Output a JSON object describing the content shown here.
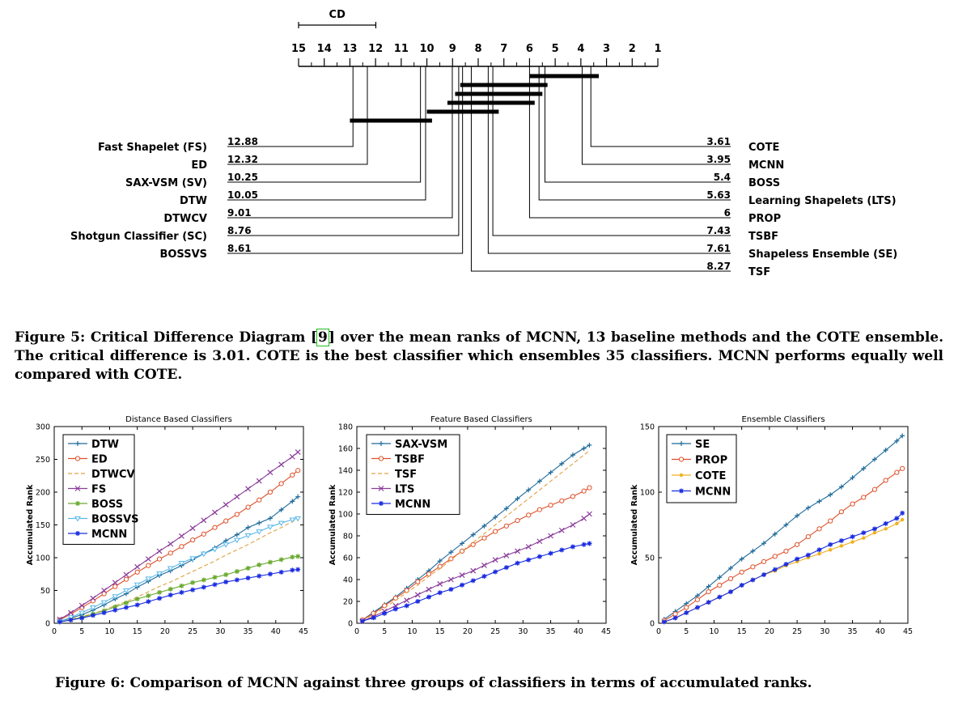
{
  "figure5": {
    "caption_label": "Figure 5:",
    "caption_pre": "Critical Difference Diagram",
    "citation": "9",
    "caption_post": "over the mean ranks of MCNN, 13 baseline methods and the COTE ensemble. The critical difference is 3.01. COTE is the best classifier which ensembles 35 classifiers. MCNN performs equally well compared with COTE.",
    "cd_label": "CD",
    "cd_value": 3.01,
    "axis_ticks": [
      "15",
      "14",
      "13",
      "12",
      "11",
      "10",
      "9",
      "8",
      "7",
      "6",
      "5",
      "4",
      "3",
      "2",
      "1"
    ],
    "left_methods": [
      {
        "name": "Fast Shapelet (FS)",
        "rank_label": "12.88",
        "rank": 12.88
      },
      {
        "name": "ED",
        "rank_label": "12.32",
        "rank": 12.32
      },
      {
        "name": "SAX-VSM (SV)",
        "rank_label": "10.25",
        "rank": 10.25
      },
      {
        "name": "DTW",
        "rank_label": "10.05",
        "rank": 10.05
      },
      {
        "name": "DTWCV",
        "rank_label": "9.01",
        "rank": 9.01
      },
      {
        "name": "Shotgun Classifier (SC)",
        "rank_label": "8.76",
        "rank": 8.76
      },
      {
        "name": "BOSSVS",
        "rank_label": "8.61",
        "rank": 8.61
      }
    ],
    "right_methods": [
      {
        "name": "COTE",
        "rank_label": "3.61",
        "rank": 3.61
      },
      {
        "name": "MCNN",
        "rank_label": "3.95",
        "rank": 3.95
      },
      {
        "name": "BOSS",
        "rank_label": "5.4",
        "rank": 5.4
      },
      {
        "name": "Learning Shapelets (LTS)",
        "rank_label": "5.63",
        "rank": 5.63
      },
      {
        "name": "PROP",
        "rank_label": "6",
        "rank": 6
      },
      {
        "name": "TSBF",
        "rank_label": "7.43",
        "rank": 7.43
      },
      {
        "name": "Shapeless Ensemble (SE)",
        "rank_label": "7.61",
        "rank": 7.61
      },
      {
        "name": "TSF",
        "rank_label": "8.27",
        "rank": 8.27
      }
    ],
    "cliques": [
      [
        6.0,
        3.3
      ],
      [
        8.7,
        5.3
      ],
      [
        8.9,
        5.5
      ],
      [
        9.2,
        5.8
      ],
      [
        10.0,
        7.2
      ],
      [
        13.0,
        9.8
      ]
    ]
  },
  "figure6": {
    "caption_label": "Figure 6:",
    "caption_text": "Comparison of MCNN against three groups of classifiers in terms of accumulated ranks."
  },
  "colors": {
    "DTW": "#1f6b9a",
    "ED": "#e0502a",
    "DTWCV": "#e0a040",
    "FS": "#8a3c9a",
    "BOSS": "#6aaa30",
    "BOSSVS": "#5ab8e8",
    "MCNN": "#1a2ce0",
    "SAX-VSM": "#1f6b9a",
    "TSBF": "#e0502a",
    "TSF": "#e0a040",
    "LTS": "#8a3c9a",
    "SE": "#1f6b9a",
    "PROP": "#e0502a",
    "COTE": "#f0b020"
  },
  "chart_data": [
    {
      "type": "line",
      "title": "Distance Based Classifiers",
      "xlabel": "",
      "ylabel": "Accumulated Rank",
      "xlim": [
        0,
        45
      ],
      "ylim": [
        0,
        300
      ],
      "xticks": [
        0,
        5,
        10,
        15,
        20,
        25,
        30,
        35,
        40,
        45
      ],
      "yticks": [
        0,
        50,
        100,
        150,
        200,
        250,
        300
      ],
      "x": [
        1,
        3,
        5,
        7,
        9,
        11,
        13,
        15,
        17,
        19,
        21,
        23,
        25,
        27,
        29,
        31,
        33,
        35,
        37,
        39,
        41,
        43,
        44
      ],
      "series": [
        {
          "name": "DTW",
          "marker": "plus",
          "dash": "",
          "values": [
            3,
            8,
            13,
            20,
            28,
            37,
            45,
            55,
            64,
            73,
            80,
            88,
            97,
            106,
            115,
            126,
            135,
            146,
            153,
            160,
            173,
            186,
            193
          ]
        },
        {
          "name": "ED",
          "marker": "circle",
          "dash": "",
          "values": [
            5,
            14,
            24,
            34,
            45,
            56,
            67,
            78,
            88,
            98,
            107,
            117,
            127,
            136,
            146,
            156,
            166,
            177,
            188,
            200,
            213,
            226,
            233
          ]
        },
        {
          "name": "DTWCV",
          "marker": "none",
          "dash": "5,3",
          "values": [
            2,
            6,
            10,
            15,
            20,
            27,
            33,
            40,
            48,
            56,
            63,
            71,
            79,
            87,
            95,
            104,
            112,
            120,
            129,
            138,
            146,
            155,
            159
          ]
        },
        {
          "name": "FS",
          "marker": "x",
          "dash": "",
          "values": [
            6,
            16,
            27,
            38,
            50,
            62,
            74,
            86,
            98,
            110,
            121,
            133,
            145,
            157,
            169,
            181,
            193,
            205,
            217,
            230,
            242,
            254,
            261
          ]
        },
        {
          "name": "BOSS",
          "marker": "star",
          "dash": "",
          "values": [
            2,
            5,
            9,
            14,
            19,
            25,
            31,
            37,
            42,
            47,
            52,
            57,
            62,
            66,
            70,
            74,
            79,
            84,
            89,
            93,
            97,
            101,
            102
          ]
        },
        {
          "name": "BOSSVS",
          "marker": "tri",
          "dash": "",
          "values": [
            3,
            9,
            16,
            24,
            32,
            41,
            50,
            59,
            68,
            76,
            84,
            92,
            99,
            106,
            113,
            120,
            127,
            134,
            140,
            147,
            153,
            158,
            160
          ]
        },
        {
          "name": "MCNN",
          "marker": "star",
          "dash": "",
          "values": [
            2,
            5,
            8,
            12,
            16,
            20,
            24,
            28,
            33,
            38,
            43,
            47,
            51,
            55,
            59,
            63,
            66,
            69,
            72,
            75,
            78,
            81,
            82
          ]
        }
      ]
    },
    {
      "type": "line",
      "title": "Feature Based Classifiers",
      "xlabel": "",
      "ylabel": "Accumulated Rank",
      "xlim": [
        0,
        45
      ],
      "ylim": [
        0,
        180
      ],
      "xticks": [
        0,
        5,
        10,
        15,
        20,
        25,
        30,
        35,
        40,
        45
      ],
      "yticks": [
        0,
        20,
        40,
        60,
        80,
        100,
        120,
        140,
        160,
        180
      ],
      "x": [
        1,
        3,
        5,
        7,
        9,
        11,
        13,
        15,
        17,
        19,
        21,
        23,
        25,
        27,
        29,
        31,
        33,
        35,
        37,
        39,
        41,
        42
      ],
      "series": [
        {
          "name": "SAX-VSM",
          "marker": "plus",
          "dash": "",
          "values": [
            3,
            10,
            17,
            24,
            32,
            40,
            48,
            57,
            65,
            73,
            81,
            89,
            97,
            105,
            114,
            122,
            130,
            138,
            146,
            154,
            160,
            163
          ]
        },
        {
          "name": "TSBF",
          "marker": "circle",
          "dash": "",
          "values": [
            3,
            9,
            16,
            23,
            30,
            38,
            45,
            52,
            59,
            66,
            72,
            78,
            84,
            89,
            94,
            99,
            104,
            108,
            112,
            116,
            121,
            124
          ]
        },
        {
          "name": "TSF",
          "marker": "none",
          "dash": "5,3",
          "values": [
            2,
            8,
            14,
            21,
            28,
            35,
            43,
            50,
            58,
            66,
            74,
            82,
            90,
            98,
            106,
            114,
            122,
            130,
            138,
            146,
            154,
            158
          ]
        },
        {
          "name": "LTS",
          "marker": "x",
          "dash": "",
          "values": [
            2,
            6,
            11,
            16,
            21,
            26,
            31,
            36,
            40,
            44,
            48,
            53,
            58,
            62,
            66,
            70,
            75,
            80,
            85,
            90,
            96,
            100
          ]
        },
        {
          "name": "MCNN",
          "marker": "star",
          "dash": "",
          "values": [
            2,
            5,
            9,
            13,
            16,
            20,
            24,
            28,
            31,
            35,
            39,
            43,
            47,
            51,
            55,
            58,
            61,
            64,
            67,
            70,
            72,
            73
          ]
        }
      ]
    },
    {
      "type": "line",
      "title": "Ensemble Classifiers",
      "xlabel": "",
      "ylabel": "Accumulated Rank",
      "xlim": [
        0,
        45
      ],
      "ylim": [
        0,
        150
      ],
      "xticks": [
        0,
        5,
        10,
        15,
        20,
        25,
        30,
        35,
        40,
        45
      ],
      "yticks": [
        0,
        50,
        100,
        150
      ],
      "x": [
        1,
        3,
        5,
        7,
        9,
        11,
        13,
        15,
        17,
        19,
        21,
        23,
        25,
        27,
        29,
        31,
        33,
        35,
        37,
        39,
        41,
        43,
        44
      ],
      "series": [
        {
          "name": "SE",
          "marker": "plus",
          "dash": "",
          "values": [
            3,
            9,
            15,
            21,
            28,
            35,
            42,
            49,
            55,
            61,
            68,
            75,
            82,
            88,
            93,
            98,
            104,
            111,
            118,
            125,
            132,
            139,
            143
          ]
        },
        {
          "name": "PROP",
          "marker": "circle",
          "dash": "",
          "values": [
            2,
            7,
            12,
            18,
            24,
            29,
            34,
            39,
            43,
            47,
            51,
            55,
            60,
            66,
            72,
            78,
            85,
            91,
            96,
            102,
            109,
            115,
            118
          ]
        },
        {
          "name": "COTE",
          "marker": "dot",
          "dash": "",
          "values": [
            1,
            4,
            8,
            12,
            16,
            20,
            24,
            29,
            33,
            37,
            40,
            44,
            47,
            50,
            53,
            56,
            59,
            62,
            65,
            69,
            72,
            76,
            79
          ]
        },
        {
          "name": "MCNN",
          "marker": "star",
          "dash": "",
          "values": [
            1,
            4,
            8,
            12,
            16,
            20,
            24,
            29,
            33,
            37,
            41,
            45,
            49,
            52,
            56,
            60,
            63,
            66,
            69,
            72,
            76,
            80,
            84
          ]
        }
      ]
    }
  ]
}
